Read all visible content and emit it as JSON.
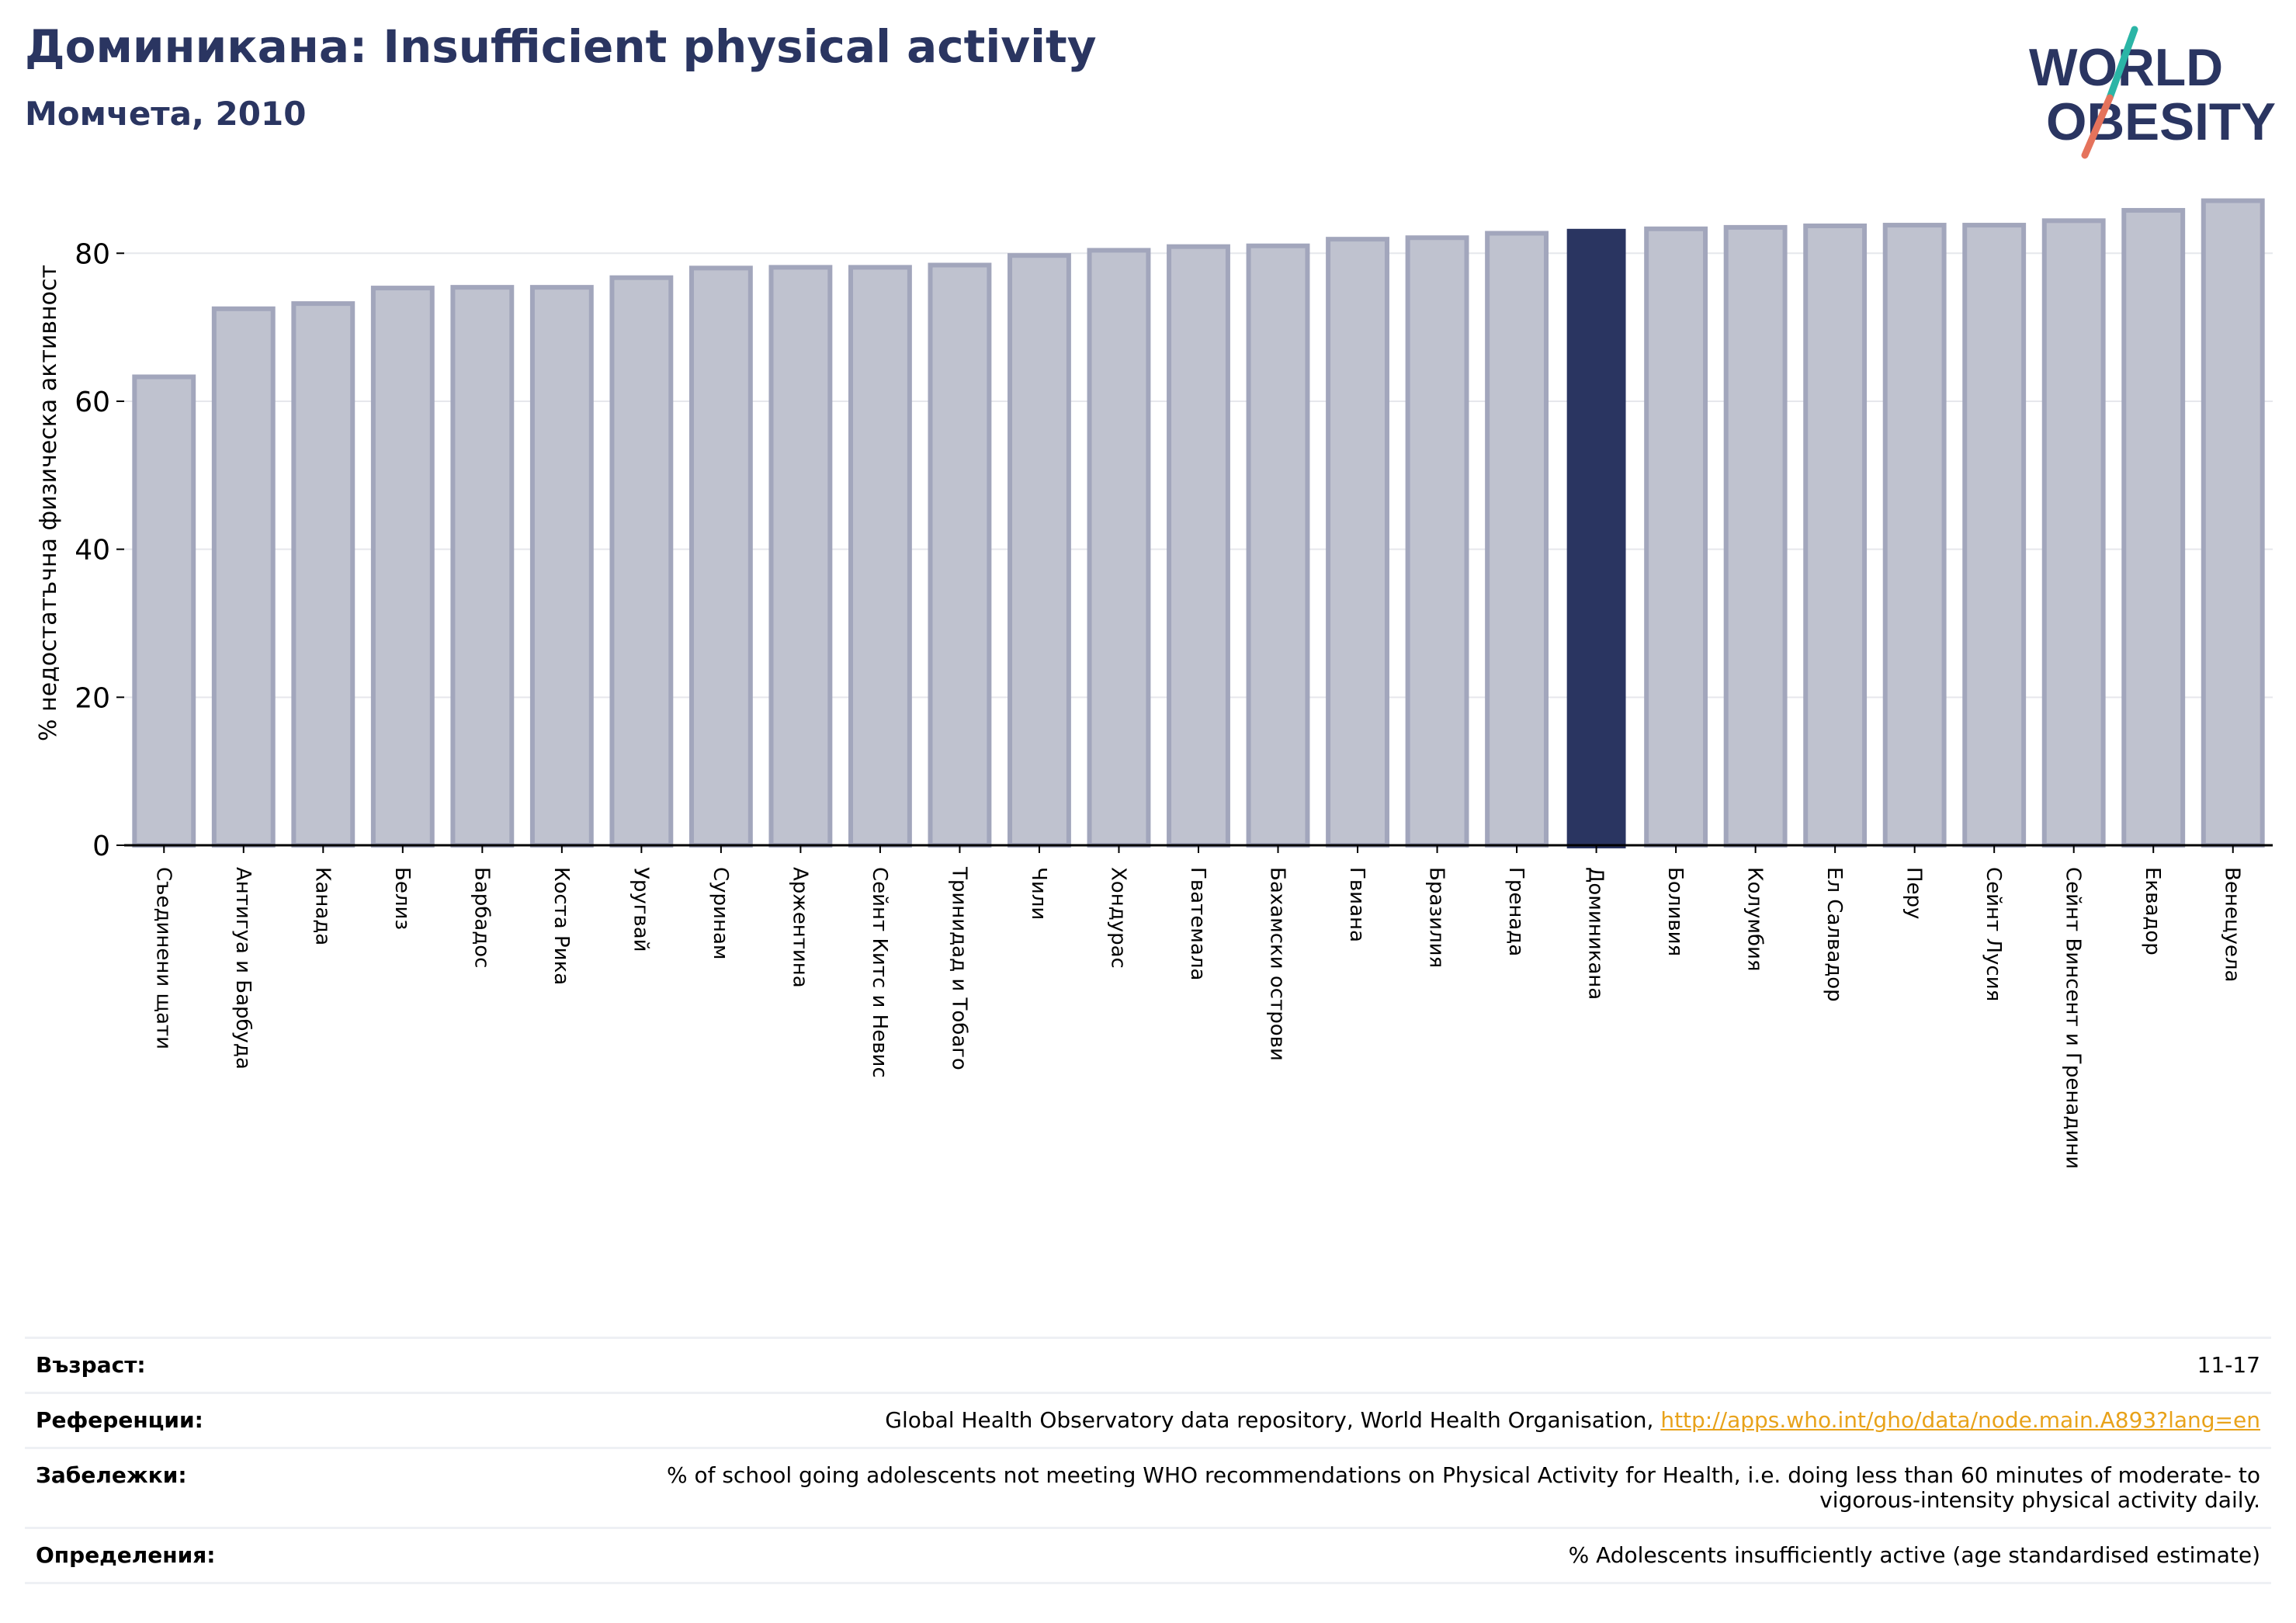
{
  "header": {
    "title": "Доминикана: Insufficient physical activity",
    "subtitle": "Момчета, 2010"
  },
  "logo": {
    "line1": "WORLD",
    "line2": "OBESITY"
  },
  "colors": {
    "bar": "#bfc2cf",
    "bar_border": "#a2a6bc",
    "highlight": "#2a3561",
    "title": "#2a3561",
    "link": "#e8a21a"
  },
  "chart_data": {
    "type": "bar",
    "ylabel": "% недостатъчна физическа активност",
    "xlabel": "",
    "ylim": [
      0,
      88
    ],
    "yticks": [
      0,
      20,
      40,
      60,
      80
    ],
    "grid": true,
    "highlight_category": "Доминикана",
    "categories": [
      "Съединени щати",
      "Антигуа и Барбуда",
      "Канада",
      "Белиз",
      "Барбадос",
      "Коста Рика",
      "Уругвай",
      "Суринам",
      "Аржентина",
      "Сейнт Китс и Невис",
      "Тринидад и Тобаго",
      "Чили",
      "Хондурас",
      "Гватемала",
      "Бахамски острови",
      "Гвиана",
      "Бразилия",
      "Гренада",
      "Доминикана",
      "Боливия",
      "Колумбия",
      "Ел Салвадор",
      "Перу",
      "Сейнт Лусия",
      "Сейнт Винсент и Гренадини",
      "Еквадор",
      "Венецуела"
    ],
    "values": [
      63.3,
      72.5,
      73.2,
      75.3,
      75.4,
      75.4,
      76.7,
      78.0,
      78.1,
      78.1,
      78.4,
      79.7,
      80.4,
      80.9,
      81.0,
      81.9,
      82.1,
      82.7,
      83.3,
      83.3,
      83.5,
      83.7,
      83.8,
      83.8,
      84.4,
      85.8,
      87.1
    ]
  },
  "meta": {
    "age_label": "Възраст:",
    "age_value": "11-17",
    "references_label": "Референции:",
    "references_text": "Global Health Observatory data repository, World Health Organisation, ",
    "references_link": "http://apps.who.int/gho/data/node.main.A893?lang=en",
    "notes_label": "Забележки:",
    "notes_value": "% of school going adolescents not meeting WHO recommendations on Physical Activity for Health, i.e. doing less than 60 minutes of moderate- to vigorous-intensity physical activity daily.",
    "definitions_label": "Определения:",
    "definitions_value": "% Adolescents insufficiently active (age standardised estimate)"
  }
}
